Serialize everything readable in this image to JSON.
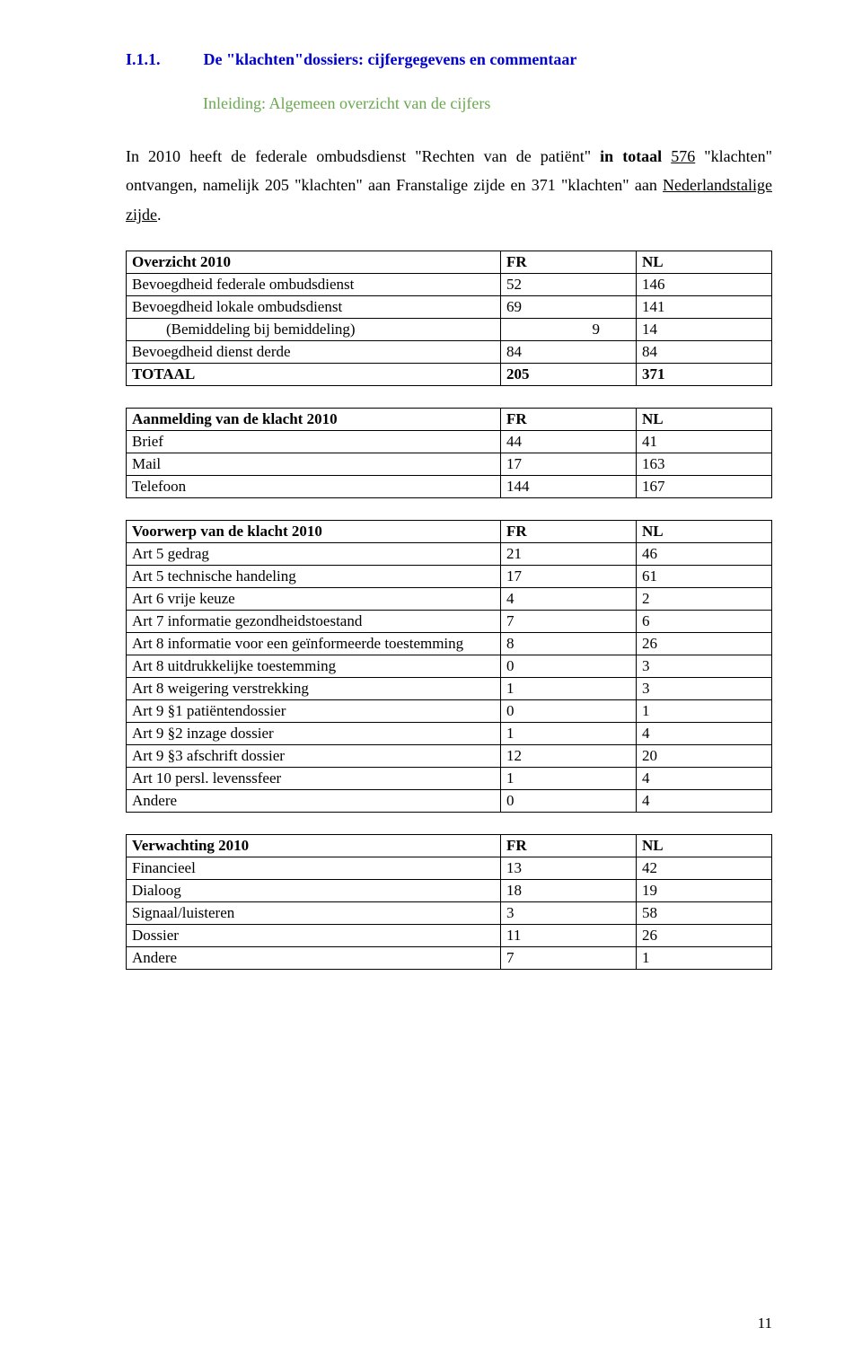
{
  "header": {
    "section_number": "I.1.1.",
    "section_title": "De \"klachten\"dossiers: cijfergegevens en commentaar",
    "subtitle": "Inleiding: Algemeen overzicht van de cijfers"
  },
  "paragraph": {
    "pre": "In 2010 heeft de federale ombudsdienst \"Rechten van de patiënt\" ",
    "bold": "in totaal",
    "post_bold": " ",
    "num": "576",
    "post_num": " \"klachten\" ontvangen, namelijk 205 \"klachten\" aan Franstalige zijde en 371 \"klachten\" aan ",
    "underline2": "Nederlandstalige zijde",
    "tail": "."
  },
  "tables": {
    "t1": {
      "header": [
        "Overzicht 2010",
        "FR",
        "NL"
      ],
      "rows": [
        [
          "Bevoegdheid federale ombudsdienst",
          "52",
          "146"
        ],
        [
          "Bevoegdheid lokale ombudsdienst",
          "69",
          "141"
        ],
        [
          "(Bemiddeling bij bemiddeling)",
          "9",
          "14"
        ],
        [
          "Bevoegdheid dienst derde",
          "84",
          "84"
        ],
        [
          "TOTAAL",
          "205",
          "371"
        ]
      ],
      "indent_row": 2,
      "bold_rows": [
        4
      ],
      "num2_indent_row": 2
    },
    "t2": {
      "header": [
        "Aanmelding van de klacht 2010",
        "FR",
        "NL"
      ],
      "rows": [
        [
          "Brief",
          "44",
          "41"
        ],
        [
          "Mail",
          "17",
          "163"
        ],
        [
          "Telefoon",
          "144",
          "167"
        ]
      ]
    },
    "t3": {
      "header": [
        "Voorwerp van de klacht 2010",
        "FR",
        "NL"
      ],
      "rows": [
        [
          "Art 5 gedrag",
          "21",
          "46"
        ],
        [
          "Art 5 technische handeling",
          "17",
          "61"
        ],
        [
          "Art 6 vrije keuze",
          "4",
          "2"
        ],
        [
          "Art 7 informatie gezondheidstoestand",
          "7",
          "6"
        ],
        [
          "Art 8 informatie voor een geïnformeerde toestemming",
          "8",
          "26"
        ],
        [
          "Art 8 uitdrukkelijke toestemming",
          "0",
          "3"
        ],
        [
          "Art 8 weigering verstrekking",
          "1",
          "3"
        ],
        [
          "Art 9 §1 patiëntendossier",
          "0",
          "1"
        ],
        [
          "Art 9 §2 inzage dossier",
          "1",
          "4"
        ],
        [
          "Art 9 §3 afschrift dossier",
          "12",
          "20"
        ],
        [
          "Art 10 persl. levenssfeer",
          "1",
          "4"
        ],
        [
          "Andere",
          "0",
          "4"
        ]
      ]
    },
    "t4": {
      "header": [
        "Verwachting 2010",
        "FR",
        "NL"
      ],
      "rows": [
        [
          "Financieel",
          "13",
          "42"
        ],
        [
          "Dialoog",
          "18",
          "19"
        ],
        [
          "Signaal/luisteren",
          "3",
          "58"
        ],
        [
          "Dossier",
          "11",
          "26"
        ],
        [
          "Andere",
          "7",
          "1"
        ]
      ]
    }
  },
  "page_number": "11"
}
